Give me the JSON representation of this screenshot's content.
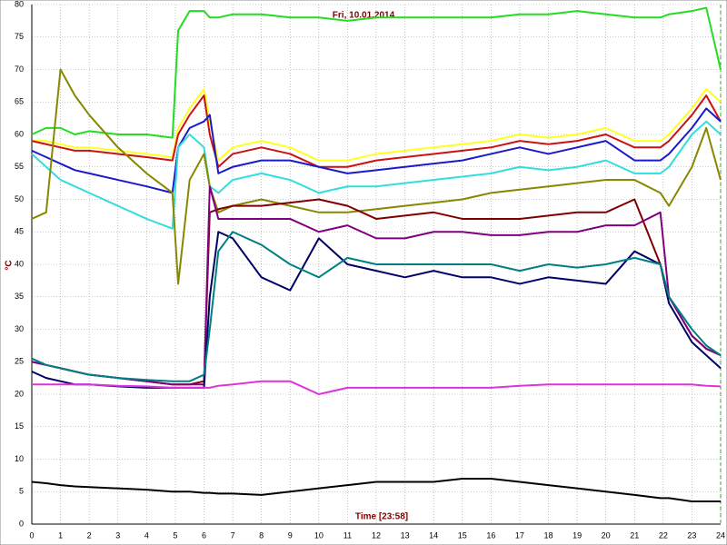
{
  "chart_data": {
    "type": "line",
    "title": "Fri, 10.01.2014",
    "y_label": "°C",
    "x_label": "Time [23:58]",
    "x": [
      0,
      0.5,
      1,
      1.5,
      2,
      3,
      4,
      4.9,
      5.1,
      5.5,
      6,
      6.2,
      6.5,
      7,
      8,
      9,
      10,
      11,
      12,
      13,
      14,
      15,
      16,
      17,
      18,
      19,
      20,
      21,
      21.9,
      22.2,
      23,
      23.5,
      24
    ],
    "series": [
      {
        "color": "#22dd22",
        "values": [
          60,
          61,
          61,
          60,
          60.5,
          60,
          60,
          59.5,
          76,
          79,
          79,
          78,
          78,
          78.5,
          78.5,
          78,
          78,
          77.5,
          78,
          78,
          78,
          78,
          78,
          78.5,
          78.5,
          79,
          78.5,
          78,
          78,
          78.5,
          79,
          79.5,
          70
        ]
      },
      {
        "color": "#ffff22",
        "values": [
          59,
          59,
          58.5,
          58,
          58,
          57.5,
          57,
          56.5,
          61,
          64,
          67,
          62,
          56,
          58,
          59,
          58,
          56,
          56,
          57,
          57.5,
          58,
          58.5,
          59,
          60,
          59.5,
          60,
          61,
          59,
          59,
          60,
          64,
          67,
          65
        ]
      },
      {
        "color": "#cc1111",
        "values": [
          59,
          58.5,
          58,
          57.5,
          57.5,
          57,
          56.5,
          56,
          60,
          63,
          66,
          60,
          55,
          57,
          58,
          57,
          55,
          55,
          56,
          56.5,
          57,
          57.5,
          58,
          59,
          58.5,
          59,
          60,
          58,
          58,
          59,
          63,
          66,
          62
        ]
      },
      {
        "color": "#1a1acc",
        "values": [
          57.5,
          56.5,
          55.5,
          54.5,
          54,
          53,
          52,
          51,
          58,
          61,
          62,
          63,
          54,
          55,
          56,
          56,
          55,
          54,
          54.5,
          55,
          55.5,
          56,
          57,
          58,
          57,
          58,
          59,
          56,
          56,
          57,
          61,
          64,
          62
        ]
      },
      {
        "color": "#33dddd",
        "values": [
          57,
          55,
          53,
          52,
          51,
          49,
          47,
          45.5,
          58,
          60,
          58,
          52,
          51,
          53,
          54,
          53,
          51,
          52,
          52,
          52.5,
          53,
          53.5,
          54,
          55,
          54.5,
          55,
          56,
          54,
          54,
          55,
          60,
          62,
          60
        ]
      },
      {
        "color": "#888800",
        "values": [
          47,
          48,
          70,
          66,
          63,
          58,
          54,
          51,
          37,
          53,
          57,
          52,
          48,
          49,
          50,
          49,
          48,
          48,
          48.5,
          49,
          49.5,
          50,
          51,
          51.5,
          52,
          52.5,
          53,
          53,
          51,
          49,
          55,
          61,
          53
        ]
      },
      {
        "color": "#800000",
        "values": [
          25,
          24.5,
          24,
          23.5,
          23,
          22.5,
          22,
          21.5,
          21.5,
          21.5,
          22,
          48,
          48.5,
          49,
          49,
          49.5,
          50,
          49,
          47,
          47.5,
          48,
          47,
          47,
          47,
          47.5,
          48,
          48,
          50,
          40,
          35,
          29,
          27,
          26
        ]
      },
      {
        "color": "#800080",
        "values": [
          25,
          24.5,
          24,
          23.5,
          23,
          22.5,
          22,
          21.5,
          21.5,
          21.5,
          21.5,
          52,
          47,
          47,
          47,
          47,
          45,
          46,
          44,
          44,
          45,
          45,
          44.5,
          44.5,
          45,
          45,
          46,
          46,
          48,
          35,
          29,
          27,
          26
        ]
      },
      {
        "color": "#000066",
        "values": [
          23.5,
          22.5,
          22,
          21.5,
          21.5,
          21.2,
          21,
          21,
          21,
          21,
          21,
          35,
          45,
          44,
          38,
          36,
          44,
          40,
          39,
          38,
          39,
          38,
          38,
          37,
          38,
          37.5,
          37,
          42,
          40,
          34,
          28,
          26,
          24
        ]
      },
      {
        "color": "#008080",
        "values": [
          25.5,
          24.5,
          24,
          23.5,
          23,
          22.5,
          22.2,
          22,
          22,
          22,
          23,
          30,
          42,
          45,
          43,
          40,
          38,
          41,
          40,
          40,
          40,
          40,
          40,
          39,
          40,
          39.5,
          40,
          41,
          40,
          35,
          30,
          27.5,
          26
        ]
      },
      {
        "color": "#dd33dd",
        "values": [
          21.5,
          21.5,
          21.5,
          21.5,
          21.5,
          21.3,
          21.2,
          21,
          21,
          21,
          21,
          21,
          21.3,
          21.5,
          22,
          22,
          20,
          21,
          21,
          21,
          21,
          21,
          21,
          21.3,
          21.5,
          21.5,
          21.5,
          21.5,
          21.5,
          21.5,
          21.5,
          21.3,
          21.2
        ]
      },
      {
        "color": "#000000",
        "values": [
          6.5,
          6.3,
          6,
          5.8,
          5.7,
          5.5,
          5.3,
          5,
          5,
          5,
          4.8,
          4.8,
          4.7,
          4.7,
          4.5,
          5,
          5.5,
          6,
          6.5,
          6.5,
          6.5,
          7,
          7,
          6.5,
          6,
          5.5,
          5,
          4.5,
          4,
          4,
          3.5,
          3.5,
          3.5
        ]
      }
    ],
    "xlim": [
      0,
      24
    ],
    "xticks": [
      0,
      1,
      2,
      3,
      4,
      5,
      6,
      7,
      8,
      9,
      10,
      11,
      12,
      13,
      14,
      15,
      16,
      17,
      18,
      19,
      20,
      21,
      22,
      23,
      24
    ],
    "ylim": [
      0,
      80
    ],
    "yticks": [
      0,
      5,
      10,
      15,
      20,
      25,
      30,
      35,
      40,
      45,
      50,
      55,
      60,
      65,
      70,
      75,
      80
    ],
    "grid": true
  }
}
